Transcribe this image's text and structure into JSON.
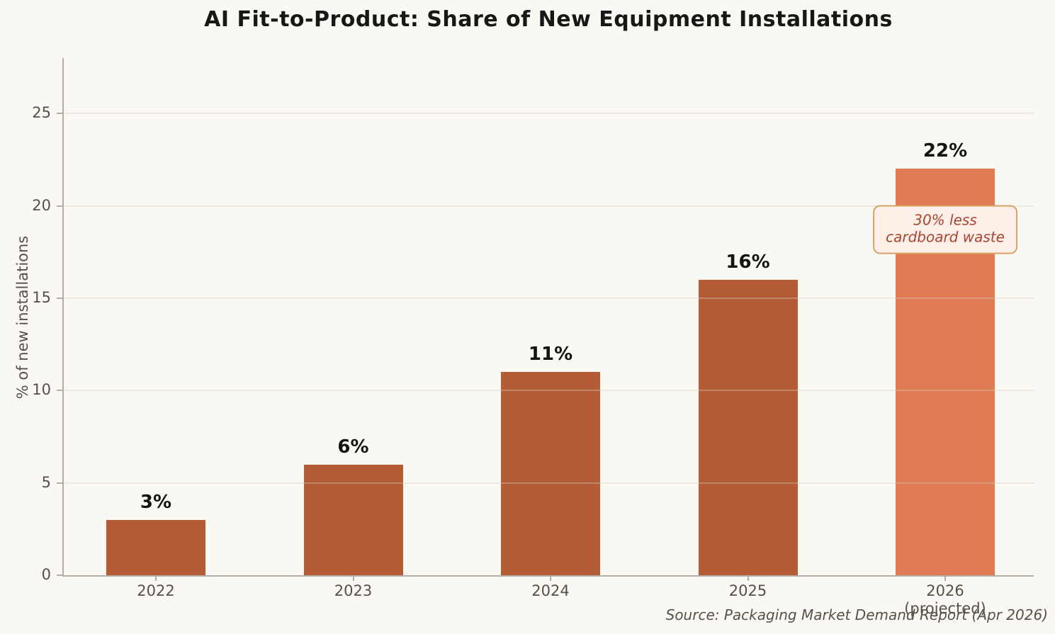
{
  "title": "AI Fit-to-Product: Share of New Equipment Installations",
  "source_note": "Source: Packaging Market Demand Report (Apr 2026)",
  "chart_data": {
    "type": "bar",
    "title": "AI Fit-to-Product: Share of New Equipment Installations",
    "xlabel": "",
    "ylabel": "% of new installations",
    "categories": [
      "2022",
      "2023",
      "2024",
      "2025",
      "2026"
    ],
    "category_sublabels": [
      "",
      "",
      "",
      "",
      "(projected)"
    ],
    "values": [
      3,
      6,
      11,
      16,
      22
    ],
    "value_labels": [
      "3%",
      "6%",
      "11%",
      "16%",
      "22%"
    ],
    "yticks": [
      0,
      5,
      10,
      15,
      20,
      25
    ],
    "ylim": [
      0,
      28
    ],
    "grid": true,
    "legend_position": "none",
    "bar_colors": [
      "#b55b36",
      "#b55b36",
      "#b55b36",
      "#b55b36",
      "#e07c53"
    ],
    "annotation": {
      "line1": "30% less",
      "line2": "cardboard waste",
      "target_category": "2026",
      "text_color": "#a8442e",
      "background": "#fdf0e9",
      "border_color": "#d9a266"
    }
  },
  "colors": {
    "background": "#faf8f2",
    "gridline": "rgba(210,205,193,0.38)",
    "spine": "#b3afa6",
    "tick_label": "#55504a",
    "title_text": "#171717",
    "value_label_text": "#141414",
    "source_text": "#56524b"
  }
}
